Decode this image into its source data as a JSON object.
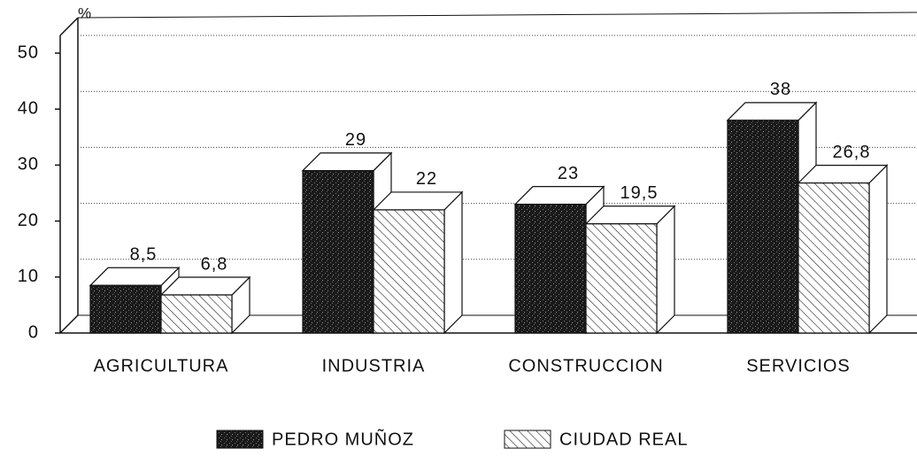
{
  "chart_data": {
    "type": "bar3d",
    "y_unit": "%",
    "categories": [
      "AGRICULTURA",
      "INDUSTRIA",
      "CONSTRUCCION",
      "SERVICIOS"
    ],
    "series": [
      {
        "name": "PEDRO MUÑOZ",
        "color": "#1a1a1a",
        "values": [
          8.5,
          29,
          23,
          38
        ],
        "value_labels": [
          "8,5",
          "29",
          "23",
          "38"
        ]
      },
      {
        "name": "CIUDAD REAL",
        "color": "#ffffff",
        "values": [
          6.8,
          22,
          19.5,
          26.8
        ],
        "value_labels": [
          "6,8",
          "22",
          "19,5",
          "26,8"
        ]
      }
    ],
    "ylim": [
      0,
      50
    ],
    "yticks": [
      0,
      10,
      20,
      30,
      40,
      50
    ],
    "grid": true
  }
}
